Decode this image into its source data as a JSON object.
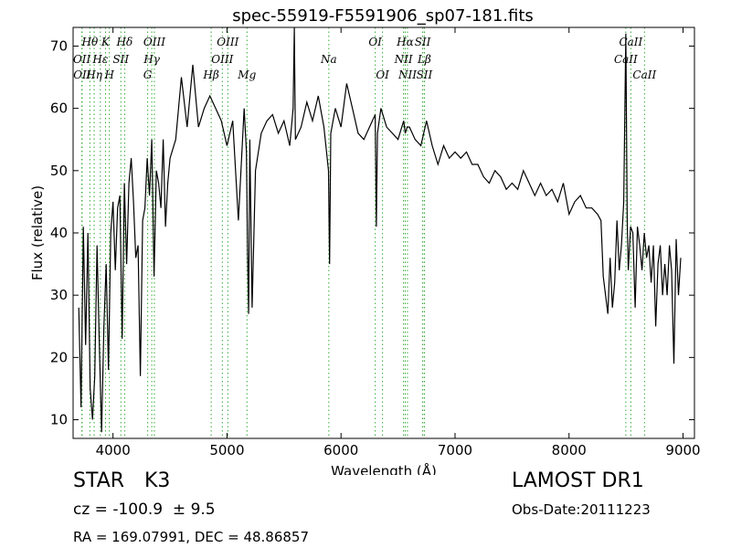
{
  "chart_data": {
    "type": "line",
    "title": "spec-55919-F5591906_sp07-181.fits",
    "xlabel": "Wavelength (Å)",
    "ylabel": "Flux (relative)",
    "xlim": [
      3650,
      9100
    ],
    "ylim": [
      7,
      73
    ],
    "xticks": [
      4000,
      5000,
      6000,
      7000,
      8000,
      9000
    ],
    "yticks": [
      10,
      20,
      30,
      40,
      50,
      60,
      70
    ],
    "grid": false,
    "line_color": "#000000",
    "marker_color": "#33aa33",
    "x": [
      3700,
      3720,
      3740,
      3760,
      3780,
      3800,
      3820,
      3840,
      3860,
      3880,
      3900,
      3920,
      3940,
      3960,
      3980,
      4000,
      4020,
      4040,
      4060,
      4080,
      4100,
      4120,
      4140,
      4160,
      4180,
      4200,
      4220,
      4240,
      4260,
      4280,
      4300,
      4320,
      4340,
      4360,
      4380,
      4400,
      4420,
      4440,
      4460,
      4480,
      4500,
      4550,
      4600,
      4650,
      4700,
      4750,
      4800,
      4850,
      4900,
      4950,
      5000,
      5050,
      5100,
      5150,
      5170,
      5180,
      5190,
      5200,
      5220,
      5250,
      5300,
      5350,
      5400,
      5450,
      5500,
      5550,
      5580,
      5590,
      5600,
      5650,
      5700,
      5750,
      5800,
      5850,
      5890,
      5900,
      5910,
      5950,
      6000,
      6050,
      6100,
      6150,
      6200,
      6250,
      6300,
      6310,
      6320,
      6350,
      6400,
      6450,
      6500,
      6550,
      6563,
      6580,
      6600,
      6650,
      6700,
      6750,
      6800,
      6850,
      6900,
      6950,
      7000,
      7050,
      7100,
      7150,
      7200,
      7250,
      7300,
      7350,
      7400,
      7450,
      7500,
      7550,
      7600,
      7650,
      7700,
      7750,
      7800,
      7850,
      7900,
      7950,
      8000,
      8050,
      8100,
      8150,
      8200,
      8250,
      8280,
      8300,
      8320,
      8340,
      8360,
      8380,
      8400,
      8420,
      8440,
      8460,
      8480,
      8498,
      8510,
      8520,
      8540,
      8560,
      8580,
      8600,
      8620,
      8640,
      8660,
      8680,
      8700,
      8720,
      8740,
      8760,
      8780,
      8800,
      8820,
      8840,
      8860,
      8880,
      8900,
      8920,
      8940,
      8960,
      8980
    ],
    "y": [
      28,
      12,
      41,
      22,
      40,
      15,
      10,
      17,
      38,
      22,
      8,
      25,
      35,
      18,
      40,
      45,
      34,
      44,
      46,
      23,
      48,
      35,
      48,
      52,
      45,
      36,
      38,
      17,
      42,
      44,
      52,
      46,
      55,
      33,
      50,
      48,
      44,
      55,
      41,
      48,
      52,
      55,
      65,
      57,
      67,
      57,
      60,
      62,
      60,
      58,
      54,
      58,
      42,
      60,
      53,
      37,
      27,
      55,
      28,
      50,
      56,
      58,
      59,
      56,
      58,
      54,
      60,
      73,
      55,
      57,
      61,
      58,
      62,
      57,
      50,
      35,
      56,
      60,
      57,
      64,
      60,
      56,
      55,
      57,
      59,
      41,
      56,
      60,
      57,
      56,
      55,
      58,
      56,
      57,
      57,
      55,
      54,
      58,
      54,
      51,
      54,
      52,
      53,
      52,
      53,
      51,
      51,
      49,
      48,
      50,
      49,
      47,
      48,
      47,
      50,
      48,
      46,
      48,
      46,
      47,
      45,
      48,
      43,
      45,
      46,
      44,
      44,
      43,
      42,
      33,
      30,
      27,
      36,
      28,
      32,
      42,
      34,
      38,
      45,
      72,
      42,
      34,
      41,
      40,
      28,
      41,
      38,
      34,
      40,
      36,
      38,
      32,
      38,
      25,
      35,
      38,
      30,
      35,
      30,
      38,
      34,
      19,
      39,
      30,
      36
    ]
  },
  "line_markers": [
    {
      "label": "Hθ",
      "x": 3797,
      "row": 0
    },
    {
      "label": "OII",
      "x": 3727,
      "row": 1
    },
    {
      "label": "OII",
      "x": 3729,
      "row": 2
    },
    {
      "label": "Hη",
      "x": 3835,
      "row": 2
    },
    {
      "label": "Hε",
      "x": 3889,
      "row": 1
    },
    {
      "label": "K",
      "x": 3934,
      "row": 0
    },
    {
      "label": "SII",
      "x": 4069,
      "row": 1
    },
    {
      "label": "H",
      "x": 3968,
      "row": 2
    },
    {
      "label": "Hδ",
      "x": 4102,
      "row": 0
    },
    {
      "label": "OIII",
      "x": 4363,
      "row": 0
    },
    {
      "label": "Hγ",
      "x": 4340,
      "row": 1
    },
    {
      "label": "G",
      "x": 4304,
      "row": 2
    },
    {
      "label": "OIII",
      "x": 5007,
      "row": 0
    },
    {
      "label": "OIII",
      "x": 4959,
      "row": 1
    },
    {
      "label": "Hβ",
      "x": 4861,
      "row": 2
    },
    {
      "label": "Mg",
      "x": 5175,
      "row": 2
    },
    {
      "label": "Na",
      "x": 5893,
      "row": 1
    },
    {
      "label": "OI",
      "x": 6300,
      "row": 0
    },
    {
      "label": "OI",
      "x": 6364,
      "row": 2
    },
    {
      "label": "Hα",
      "x": 6563,
      "row": 0
    },
    {
      "label": "SII",
      "x": 6716,
      "row": 0
    },
    {
      "label": "NII",
      "x": 6548,
      "row": 1
    },
    {
      "label": "Lβ",
      "x": 6731,
      "row": 1
    },
    {
      "label": "NII",
      "x": 6583,
      "row": 2
    },
    {
      "label": "SII",
      "x": 6731,
      "row": 2
    },
    {
      "label": "CaII",
      "x": 8542,
      "row": 0
    },
    {
      "label": "CaII",
      "x": 8498,
      "row": 1
    },
    {
      "label": "CaII",
      "x": 8662,
      "row": 2
    }
  ],
  "info": {
    "object_class": "STAR",
    "subclass": "K3",
    "survey": "LAMOST DR1",
    "cz": "cz = -100.9  ± 9.5",
    "obs_date": "Obs-Date:20111223",
    "coords": "RA = 169.07991, DEC = 48.86857"
  }
}
